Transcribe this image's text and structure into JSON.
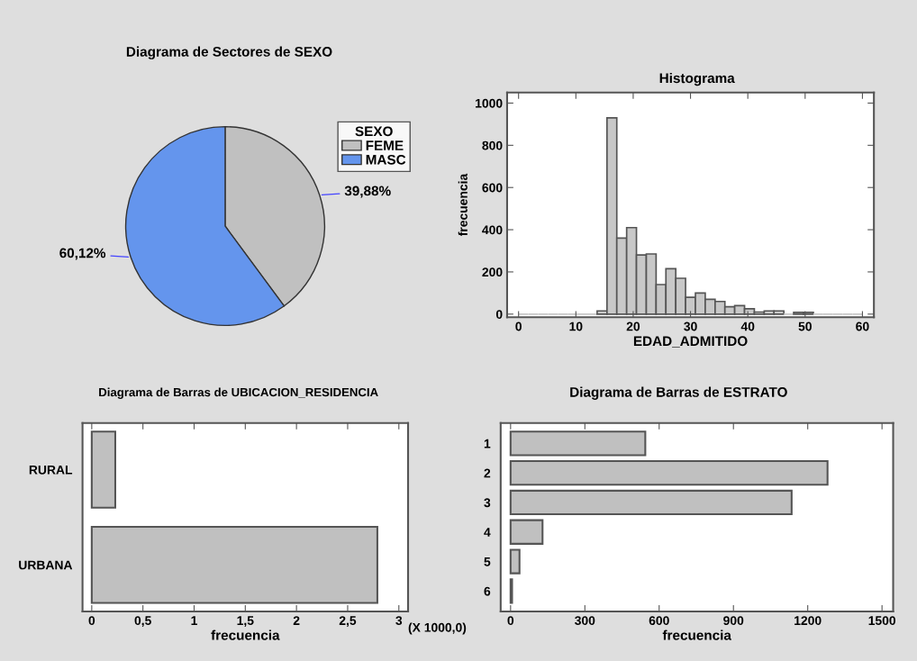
{
  "chart_data": [
    {
      "type": "pie",
      "title": "Diagrama de Sectores de SEXO",
      "legend_title": "SEXO",
      "legend": "top right",
      "categories": [
        "FEME",
        "MASC"
      ],
      "values": [
        39.88,
        60.12
      ],
      "colors": [
        "#c0c0c0",
        "#6495ed"
      ],
      "value_labels": [
        "39,88%",
        "60,12%"
      ]
    },
    {
      "type": "histogram",
      "title": "Histograma",
      "xlabel": "EDAD_ADMITIDO",
      "ylabel": "frecuencia",
      "bins": [
        0,
        1.71,
        3.43,
        5.14,
        6.86,
        8.57,
        10.29,
        12.0,
        13.71,
        15.43,
        17.14,
        18.86,
        20.57,
        22.29,
        24.0,
        25.71,
        27.43,
        29.14,
        30.86,
        32.57,
        34.29,
        36.0,
        37.71,
        39.43,
        41.14,
        42.86,
        44.57,
        46.29,
        48.0,
        49.71,
        51.43,
        53.14,
        54.86,
        56.57,
        58.29,
        60.0
      ],
      "values": [
        0,
        0,
        0,
        0,
        0,
        0,
        0,
        0,
        15,
        930,
        360,
        410,
        280,
        285,
        140,
        215,
        170,
        80,
        100,
        70,
        60,
        35,
        40,
        25,
        10,
        15,
        15,
        0,
        8,
        8,
        0,
        0,
        0,
        0,
        0
      ],
      "color": "#c8c8c8",
      "xlim": [
        -2,
        62
      ],
      "xticks": [
        0,
        10,
        20,
        30,
        40,
        50,
        60
      ],
      "ylim": [
        -15,
        1050
      ],
      "yticks": [
        0,
        200,
        400,
        600,
        800,
        1000
      ]
    },
    {
      "type": "bar",
      "orientation": "horizontal",
      "title": "Diagrama de Barras de UBICACION_RESIDENCIA",
      "xlabel": "frecuencia",
      "categories": [
        "RURAL",
        "URBANA"
      ],
      "values": [
        0.23,
        2.79
      ],
      "color": "#c0c0c0",
      "xlim": [
        -0.09,
        3.09
      ],
      "xticks": [
        0,
        {
          "value": 0.5,
          "label": "0,5"
        },
        1,
        {
          "value": 1.5,
          "label": "1,5"
        },
        2,
        {
          "value": 2.5,
          "label": "2,5"
        },
        3
      ],
      "annotations": [
        "(X 1000,0)"
      ]
    },
    {
      "type": "bar",
      "orientation": "horizontal",
      "title": "Diagrama de Barras de ESTRATO",
      "xlabel": "frecuencia",
      "categories": [
        "1",
        "2",
        "3",
        "4",
        "5",
        "6"
      ],
      "values": [
        544,
        1280,
        1135,
        129,
        36,
        6
      ],
      "color": "#c0c0c0",
      "xlim": [
        -40,
        1545
      ],
      "xticks": [
        0,
        300,
        600,
        900,
        1200,
        1500
      ]
    }
  ]
}
